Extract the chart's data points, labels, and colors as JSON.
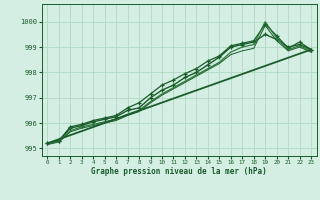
{
  "xlabel": "Graphe pression niveau de la mer (hPa)",
  "xlim": [
    -0.5,
    23.5
  ],
  "ylim": [
    994.7,
    1000.7
  ],
  "yticks": [
    995,
    996,
    997,
    998,
    999,
    1000
  ],
  "xticks": [
    0,
    1,
    2,
    3,
    4,
    5,
    6,
    7,
    8,
    9,
    10,
    11,
    12,
    13,
    14,
    15,
    16,
    17,
    18,
    19,
    20,
    21,
    22,
    23
  ],
  "bg_color": "#d4eee4",
  "grid_color": "#b0d8c4",
  "line_color": "#1a5c2a",
  "series": [
    {
      "x": [
        0,
        1,
        2,
        3,
        4,
        5,
        6,
        7,
        8,
        9,
        10,
        11,
        12,
        13,
        14,
        15,
        16,
        17,
        18,
        19,
        20,
        21,
        22,
        23
      ],
      "y": [
        995.2,
        995.3,
        995.8,
        995.9,
        996.05,
        996.15,
        996.25,
        996.5,
        996.6,
        997.0,
        997.3,
        997.5,
        997.8,
        998.0,
        998.3,
        998.6,
        999.0,
        999.1,
        999.2,
        999.5,
        999.3,
        999.0,
        999.1,
        998.9
      ],
      "color": "#1a5c2a",
      "lw": 1.0,
      "marker": "+",
      "ms": 3.5
    },
    {
      "x": [
        0,
        1,
        2,
        3,
        4,
        5,
        6,
        7,
        8,
        9,
        10,
        11,
        12,
        13,
        14,
        15,
        16,
        17,
        18,
        19,
        20,
        21,
        22,
        23
      ],
      "y": [
        995.2,
        995.3,
        995.85,
        995.95,
        996.1,
        996.2,
        996.3,
        996.6,
        996.8,
        997.15,
        997.5,
        997.7,
        997.95,
        998.15,
        998.45,
        998.65,
        999.05,
        999.15,
        999.25,
        999.9,
        999.45,
        998.95,
        999.2,
        998.9
      ],
      "color": "#1a5c2a",
      "lw": 0.9,
      "marker": "+",
      "ms": 3.0
    },
    {
      "x": [
        0,
        1,
        2,
        3,
        4,
        5,
        6,
        7,
        8,
        9,
        10,
        11,
        12,
        13,
        14,
        15,
        16,
        17,
        18,
        19,
        20,
        21,
        22,
        23
      ],
      "y": [
        995.2,
        995.3,
        995.7,
        995.85,
        995.95,
        996.05,
        996.15,
        996.35,
        996.5,
        996.85,
        997.15,
        997.4,
        997.65,
        997.9,
        998.15,
        998.4,
        998.8,
        999.0,
        999.1,
        1000.0,
        999.35,
        998.9,
        999.05,
        998.85
      ],
      "color": "#2d7a3a",
      "lw": 0.9,
      "marker": null,
      "ms": 0
    },
    {
      "x": [
        0,
        1,
        2,
        3,
        4,
        5,
        6,
        7,
        8,
        9,
        10,
        11,
        12,
        13,
        14,
        15,
        16,
        17,
        18,
        19,
        20,
        21,
        22,
        23
      ],
      "y": [
        995.15,
        995.25,
        995.65,
        995.8,
        995.9,
        996.0,
        996.1,
        996.3,
        996.45,
        996.8,
        997.1,
        997.35,
        997.6,
        997.85,
        998.1,
        998.35,
        998.7,
        998.85,
        998.95,
        999.85,
        999.25,
        998.85,
        999.0,
        998.8
      ],
      "color": "#1a5c2a",
      "lw": 0.7,
      "marker": null,
      "ms": 0
    },
    {
      "x": [
        0,
        23
      ],
      "y": [
        995.2,
        998.9
      ],
      "color": "#1a5c2a",
      "lw": 1.3,
      "marker": null,
      "ms": 0
    }
  ]
}
